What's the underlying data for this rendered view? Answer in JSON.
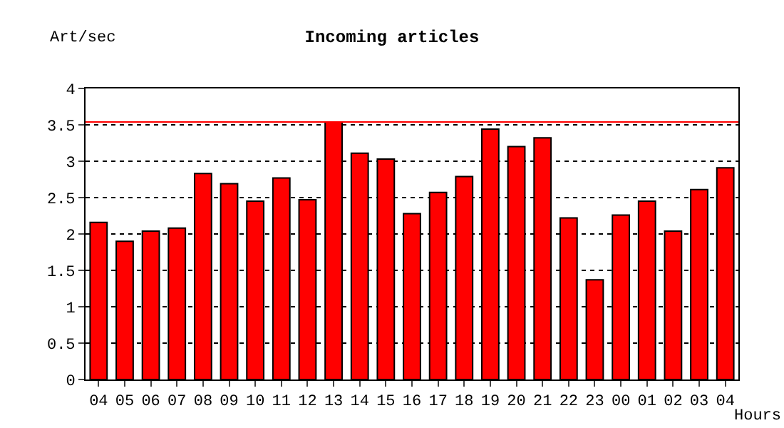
{
  "chart_data": {
    "type": "bar",
    "title": "Incoming articles",
    "xlabel": "Hours",
    "ylabel": "Art/sec",
    "categories": [
      "04",
      "05",
      "06",
      "07",
      "08",
      "09",
      "10",
      "11",
      "12",
      "13",
      "14",
      "15",
      "16",
      "17",
      "18",
      "19",
      "20",
      "21",
      "22",
      "23",
      "00",
      "01",
      "02",
      "03",
      "04"
    ],
    "values": [
      2.16,
      1.9,
      2.04,
      2.08,
      2.83,
      2.69,
      2.45,
      2.77,
      2.47,
      3.54,
      3.11,
      3.03,
      2.28,
      2.57,
      2.79,
      3.44,
      3.2,
      3.32,
      2.22,
      1.37,
      2.26,
      2.45,
      2.04,
      2.61,
      2.91
    ],
    "color": "#ff0000",
    "ylim": [
      0,
      4
    ],
    "yticks": [
      0,
      0.5,
      1,
      1.5,
      2,
      2.5,
      3,
      3.5,
      4
    ],
    "grid": "y",
    "legend": false,
    "ref_lines": [
      {
        "axis": "y",
        "value": 3.54,
        "color": "#ff0000",
        "line_style": "solid"
      }
    ]
  }
}
